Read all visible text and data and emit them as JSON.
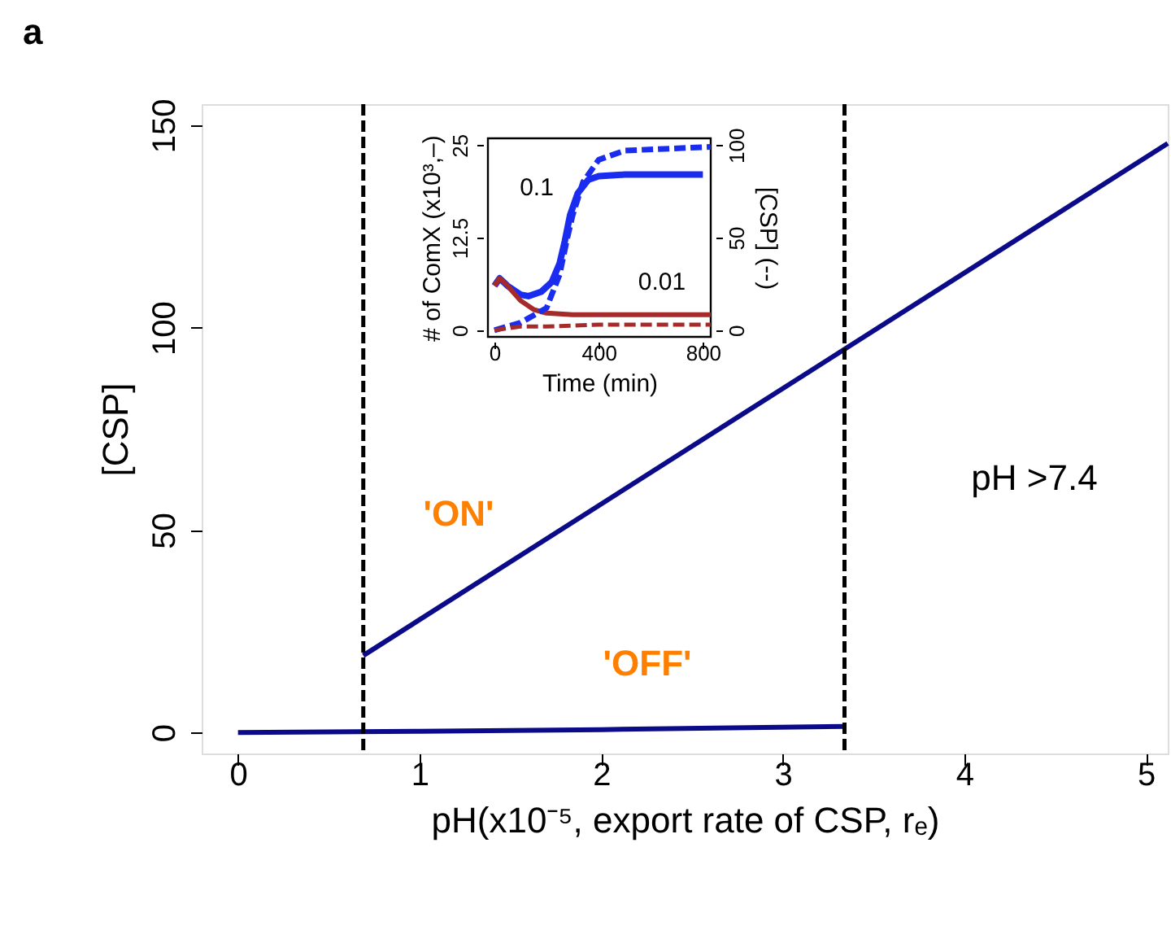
{
  "chart_data": [
    {
      "type": "line",
      "xlabel": "pH(x10⁻⁵, export rate of CSP, rₑ)",
      "ylabel": "[CSP]",
      "xlim": [
        -0.2,
        5.12
      ],
      "xticks": [
        0,
        1,
        2,
        3,
        4,
        5
      ],
      "ylim": [
        -5.2,
        155.2
      ],
      "yticks": [
        0,
        50,
        100,
        150
      ],
      "grid": false,
      "marker": "none",
      "line_style": "solid",
      "series": [
        {
          "color": "#0b0b8a",
          "x": [
            0,
            1,
            2,
            3.34
          ],
          "values": [
            0,
            0.3,
            0.7,
            1.5
          ]
        },
        {
          "color": "#0b0b8a",
          "x": [
            0.69,
            5.12
          ],
          "values": [
            19,
            145.5
          ]
        }
      ],
      "ref_lines": [
        {
          "axis": "x",
          "value": 0.69,
          "color": "#000000",
          "line_style": "dashed"
        },
        {
          "axis": "x",
          "value": 3.34,
          "color": "#000000",
          "line_style": "dashed"
        }
      ],
      "annotations": [
        "a",
        "'ON'",
        "'OFF'",
        "pH >7.4"
      ]
    },
    {
      "type": "line",
      "xlabel": "Time (min)",
      "ylabel": "# of ComX (x10³,–)",
      "y2label": "[CSP] (--)",
      "xlim": [
        -25,
        830
      ],
      "xticks": [
        0,
        400,
        800
      ],
      "ylim": [
        -0.9,
        25.9
      ],
      "yticks": [
        0,
        12.5,
        25
      ],
      "y2lim": [
        -3.6,
        103.6
      ],
      "y2ticks": [
        0,
        50,
        100
      ],
      "grid": false,
      "marker": "none",
      "series": [
        {
          "color": "#1a2cf0",
          "line_style": "solid",
          "x": [
            0,
            20,
            50,
            100,
            130,
            180,
            220,
            250,
            270,
            290,
            320,
            360,
            400,
            500,
            800
          ],
          "values": [
            6,
            7,
            6,
            4.8,
            4.6,
            5.2,
            6.5,
            9,
            12,
            15.5,
            18.5,
            20.3,
            20.8,
            21,
            21
          ]
        },
        {
          "color": "#1a2cf0",
          "line_style": "dashed",
          "axis": "y2",
          "x": [
            0,
            100,
            200,
            250,
            280,
            300,
            340,
            400,
            500,
            830
          ],
          "values": [
            0,
            4,
            12,
            30,
            50,
            62,
            80,
            92,
            97,
            99
          ]
        },
        {
          "color": "#a52a2a",
          "line_style": "solid",
          "x": [
            0,
            20,
            50,
            100,
            150,
            200,
            300,
            830
          ],
          "values": [
            6,
            7,
            6,
            4,
            2.8,
            2.3,
            2.1,
            2.1
          ]
        },
        {
          "color": "#a52a2a",
          "line_style": "dashed",
          "axis": "y2",
          "x": [
            0,
            100,
            200,
            400,
            830
          ],
          "values": [
            0,
            2,
            2,
            3,
            3
          ]
        }
      ],
      "annotations": [
        "0.1",
        "0.01"
      ]
    }
  ]
}
